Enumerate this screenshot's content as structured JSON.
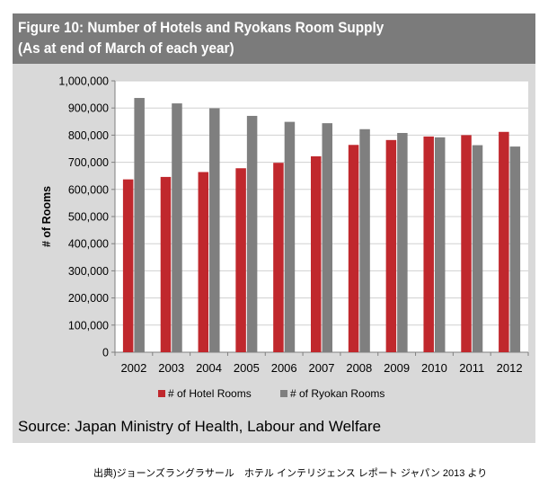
{
  "header": {
    "title_line1": "Figure 10: Number of Hotels and Ryokans Room Supply",
    "title_line2": "(As at end of March of each year)"
  },
  "source": "Source: Japan Ministry of Health, Labour and Welfare",
  "credit": "出典)ジョーンズラングラサール　ホテル インテリジェンス レポート ジャパン 2013 より",
  "colors": {
    "hotel": "#c0282d",
    "ryokan": "#7f7f7f",
    "header_bg": "#7b7b7b",
    "panel_bg": "#d9d9d9"
  },
  "chart_data": {
    "type": "bar",
    "title": "Figure 10: Number of Hotels and Ryokans Room Supply",
    "subtitle": "(As at end of March of each year)",
    "xlabel": "",
    "ylabel": "# of Rooms",
    "ylim": [
      0,
      1000000
    ],
    "yticks": [
      "0",
      "100,000",
      "200,000",
      "300,000",
      "400,000",
      "500,000",
      "600,000",
      "700,000",
      "800,000",
      "900,000",
      "1,000,000"
    ],
    "ytick_values": [
      0,
      100000,
      200000,
      300000,
      400000,
      500000,
      600000,
      700000,
      800000,
      900000,
      1000000
    ],
    "categories": [
      "2002",
      "2003",
      "2004",
      "2005",
      "2006",
      "2007",
      "2008",
      "2009",
      "2010",
      "2011",
      "2012"
    ],
    "series": [
      {
        "name": "# of Hotel Rooms",
        "values": [
          637000,
          646000,
          664000,
          678000,
          698000,
          722000,
          764000,
          782000,
          795000,
          800000,
          812000
        ]
      },
      {
        "name": "# of Ryokan Rooms",
        "values": [
          937000,
          917000,
          899000,
          871000,
          849000,
          844000,
          822000,
          808000,
          792000,
          763000,
          758000
        ]
      }
    ],
    "grid": "horizontal",
    "legend_position": "bottom"
  }
}
